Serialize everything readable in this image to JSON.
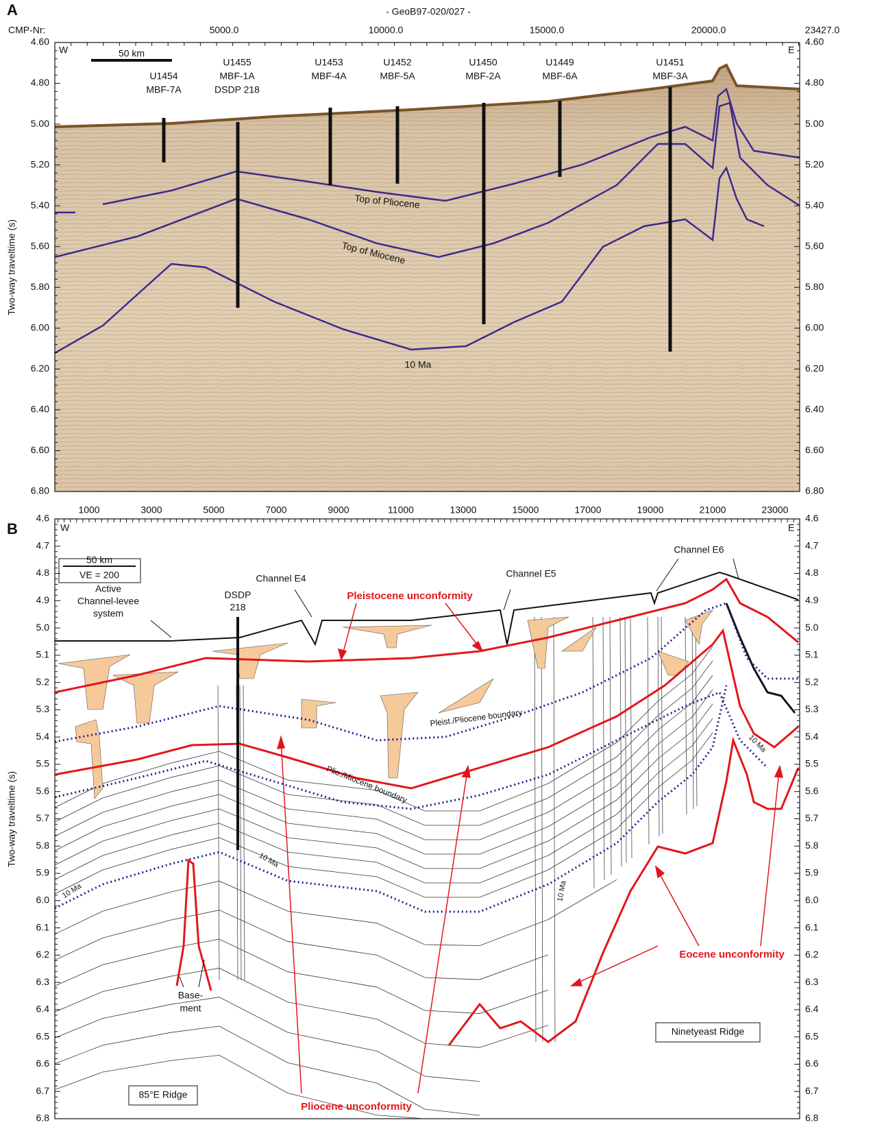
{
  "panel_a": {
    "letter": "A",
    "title": "- GeoB97-020/027 -",
    "top_axis_label": "CMP-Nr:",
    "top_ticks": [
      "5000.0",
      "10000.0",
      "15000.0",
      "20000.0",
      "23427.0"
    ],
    "y_axis_label": "Two-way traveltime (s)",
    "y_ticks": [
      "4.60",
      "4.80",
      "5.00",
      "5.20",
      "5.40",
      "5.60",
      "5.80",
      "6.00",
      "6.20",
      "6.40",
      "6.60",
      "6.80"
    ],
    "west": "W",
    "east": "E",
    "scale": "50 km",
    "sites": [
      {
        "lines": [
          "U1454",
          "MBF-7A"
        ]
      },
      {
        "lines": [
          "U1455",
          "MBF-1A",
          "DSDP 218"
        ]
      },
      {
        "lines": [
          "U1453",
          "MBF-4A"
        ]
      },
      {
        "lines": [
          "U1452",
          "MBF-5A"
        ]
      },
      {
        "lines": [
          "U1450",
          "MBF-2A"
        ]
      },
      {
        "lines": [
          "U1449",
          "MBF-6A"
        ]
      },
      {
        "lines": [
          "U1451",
          "MBF-3A"
        ]
      }
    ],
    "horizon_labels": [
      "Top of Pliocene",
      "Top of Miocene",
      "10 Ma"
    ]
  },
  "panel_b": {
    "letter": "B",
    "top_ticks": [
      "1000",
      "3000",
      "5000",
      "7000",
      "9000",
      "11000",
      "13000",
      "15000",
      "17000",
      "19000",
      "21000",
      "23000"
    ],
    "y_axis_label": "Two-way traveltime (s)",
    "y_ticks": [
      "4.6",
      "4.7",
      "4.8",
      "4.9",
      "5.0",
      "5.1",
      "5.2",
      "5.3",
      "5.4",
      "5.5",
      "5.6",
      "5.7",
      "5.8",
      "5.9",
      "6.0",
      "6.1",
      "6.2",
      "6.3",
      "6.4",
      "6.5",
      "6.6",
      "6.7",
      "6.8"
    ],
    "west": "W",
    "east": "E",
    "scale": "50 km",
    "vertical_exaggeration": "VE = 200",
    "active_system": [
      "Active",
      "Channel-levee",
      "system"
    ],
    "dsdp": [
      "DSDP",
      "218"
    ],
    "channels": [
      "Channel E4",
      "Channel E5",
      "Channel E6"
    ],
    "pleistocene_unconformity": "Pleistocene unconformity",
    "pleist_pliocene_boundary": "Pleist./Pliocene boundary",
    "plio_miocene_boundary": "Plio./Miocene boundary",
    "ten_ma": [
      "10 Ma",
      "10 Ma",
      "10 Ma",
      "10 Ma"
    ],
    "basement": [
      "Base-",
      "ment"
    ],
    "ridge_85e": "85°E Ridge",
    "pliocene_unconformity": "Pliocene unconformity",
    "eocene_unconformity": "Eocene unconformity",
    "ninetyeast_ridge": "Ninetyeast Ridge"
  }
}
